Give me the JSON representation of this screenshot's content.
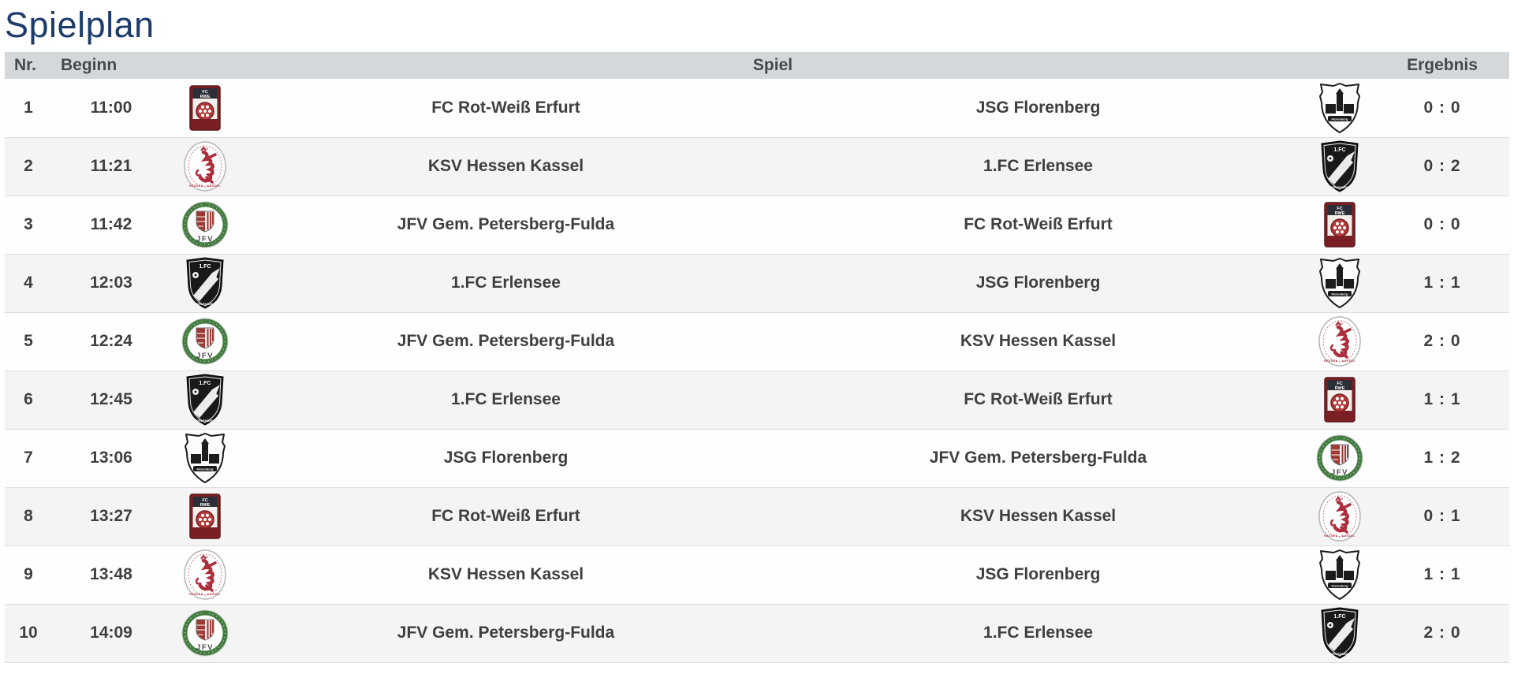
{
  "title": "Spielplan",
  "colors": {
    "title_text": "#1d3c6c",
    "header_bg": "#d4d8db",
    "row_bg": "#fefefe",
    "row_alt_bg": "#f4f4f4",
    "row_text": "#3d3f41",
    "divider": "#dcdddf"
  },
  "table": {
    "headers": {
      "nr": "Nr.",
      "beginn": "Beginn",
      "spiel": "Spiel",
      "ergebnis": "Ergebnis"
    }
  },
  "teams": [
    {
      "name": "FC Rot-Weiß Erfurt",
      "logo": "rwe-logo"
    },
    {
      "name": "JSG Florenberg",
      "logo": "florenberg-logo"
    },
    {
      "name": "KSV Hessen Kassel",
      "logo": "ksv-hessen-kassel-logo"
    },
    {
      "name": "1.FC Erlensee",
      "logo": "erlensee-logo"
    },
    {
      "name": "JFV Gem. Petersberg-Fulda",
      "logo": "jfv-petersberg-fulda-logo"
    }
  ],
  "rows": [
    {
      "nr": "1",
      "time": "11:00",
      "home": {
        "name": "FC Rot-Weiß Erfurt",
        "logo": "rwe-logo"
      },
      "away": {
        "name": "JSG Florenberg",
        "logo": "florenberg-logo"
      },
      "score": "0 : 0"
    },
    {
      "nr": "2",
      "time": "11:21",
      "home": {
        "name": "KSV Hessen Kassel",
        "logo": "ksv-hessen-kassel-logo"
      },
      "away": {
        "name": "1.FC Erlensee",
        "logo": "erlensee-logo"
      },
      "score": "0 : 2"
    },
    {
      "nr": "3",
      "time": "11:42",
      "home": {
        "name": "JFV Gem. Petersberg-Fulda",
        "logo": "jfv-petersberg-fulda-logo"
      },
      "away": {
        "name": "FC Rot-Weiß Erfurt",
        "logo": "rwe-logo"
      },
      "score": "0 : 0"
    },
    {
      "nr": "4",
      "time": "12:03",
      "home": {
        "name": "1.FC Erlensee",
        "logo": "erlensee-logo"
      },
      "away": {
        "name": "JSG Florenberg",
        "logo": "florenberg-logo"
      },
      "score": "1 : 1"
    },
    {
      "nr": "5",
      "time": "12:24",
      "home": {
        "name": "JFV Gem. Petersberg-Fulda",
        "logo": "jfv-petersberg-fulda-logo"
      },
      "away": {
        "name": "KSV Hessen Kassel",
        "logo": "ksv-hessen-kassel-logo"
      },
      "score": "2 : 0"
    },
    {
      "nr": "6",
      "time": "12:45",
      "home": {
        "name": "1.FC Erlensee",
        "logo": "erlensee-logo"
      },
      "away": {
        "name": "FC Rot-Weiß Erfurt",
        "logo": "rwe-logo"
      },
      "score": "1 : 1"
    },
    {
      "nr": "7",
      "time": "13:06",
      "home": {
        "name": "JSG Florenberg",
        "logo": "florenberg-logo"
      },
      "away": {
        "name": "JFV Gem. Petersberg-Fulda",
        "logo": "jfv-petersberg-fulda-logo"
      },
      "score": "1 : 2"
    },
    {
      "nr": "8",
      "time": "13:27",
      "home": {
        "name": "FC Rot-Weiß Erfurt",
        "logo": "rwe-logo"
      },
      "away": {
        "name": "KSV Hessen Kassel",
        "logo": "ksv-hessen-kassel-logo"
      },
      "score": "0 : 1"
    },
    {
      "nr": "9",
      "time": "13:48",
      "home": {
        "name": "KSV Hessen Kassel",
        "logo": "ksv-hessen-kassel-logo"
      },
      "away": {
        "name": "JSG Florenberg",
        "logo": "florenberg-logo"
      },
      "score": "1 : 1"
    },
    {
      "nr": "10",
      "time": "14:09",
      "home": {
        "name": "JFV Gem. Petersberg-Fulda",
        "logo": "jfv-petersberg-fulda-logo"
      },
      "away": {
        "name": "1.FC Erlensee",
        "logo": "erlensee-logo"
      },
      "score": "2 : 0"
    }
  ]
}
